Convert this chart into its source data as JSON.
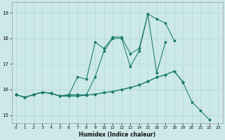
{
  "title": "",
  "xlabel": "Humidex (Indice chaleur)",
  "xlim": [
    -0.5,
    23.5
  ],
  "ylim": [
    14.7,
    19.4
  ],
  "yticks": [
    15,
    16,
    17,
    18,
    19
  ],
  "xticks": [
    0,
    1,
    2,
    3,
    4,
    5,
    6,
    7,
    8,
    9,
    10,
    11,
    12,
    13,
    14,
    15,
    16,
    17,
    18,
    19,
    20,
    21,
    22,
    23
  ],
  "bg_color": "#cce8e8",
  "line_color": "#1a7a6e",
  "grid_color": "#b0d8d8",
  "line1_x": [
    0,
    1,
    2,
    3,
    4,
    5,
    6,
    7,
    8,
    9,
    10,
    11,
    12,
    13,
    14,
    15,
    16,
    17,
    18
  ],
  "line1_y": [
    15.8,
    15.7,
    15.8,
    15.9,
    15.85,
    15.75,
    15.8,
    16.5,
    16.4,
    17.85,
    17.6,
    18.05,
    18.05,
    17.4,
    17.6,
    18.95,
    18.75,
    18.6,
    17.9
  ],
  "line2_x": [
    0,
    1,
    2,
    3,
    4,
    5,
    6,
    7,
    8,
    9,
    10,
    11,
    12,
    13,
    14,
    15,
    16,
    17,
    18,
    19,
    20,
    21,
    22
  ],
  "line2_y": [
    15.8,
    15.7,
    15.8,
    15.9,
    15.85,
    15.75,
    15.75,
    15.75,
    15.78,
    15.82,
    15.88,
    15.93,
    16.0,
    16.08,
    16.18,
    16.32,
    16.48,
    16.58,
    16.72,
    16.28,
    15.52,
    15.18,
    14.82
  ],
  "line3_x": [
    0,
    1,
    2,
    3,
    4,
    5,
    6,
    7,
    8,
    9,
    10,
    11,
    12,
    13,
    14,
    15,
    16,
    17,
    18,
    19
  ],
  "line3_y": [
    15.8,
    15.7,
    15.8,
    15.9,
    15.85,
    15.75,
    15.75,
    15.75,
    15.78,
    15.82,
    15.88,
    15.93,
    16.0,
    16.08,
    16.18,
    16.32,
    16.48,
    16.58,
    16.72,
    16.3
  ],
  "line4_x": [
    0,
    1,
    2,
    3,
    4,
    5,
    6,
    7,
    8,
    9,
    10,
    11,
    12,
    13,
    14,
    15,
    16,
    17
  ],
  "line4_y": [
    15.8,
    15.7,
    15.8,
    15.9,
    15.85,
    15.75,
    15.8,
    15.8,
    15.8,
    16.5,
    17.5,
    18.0,
    18.0,
    16.9,
    17.5,
    18.95,
    16.65,
    17.85
  ]
}
